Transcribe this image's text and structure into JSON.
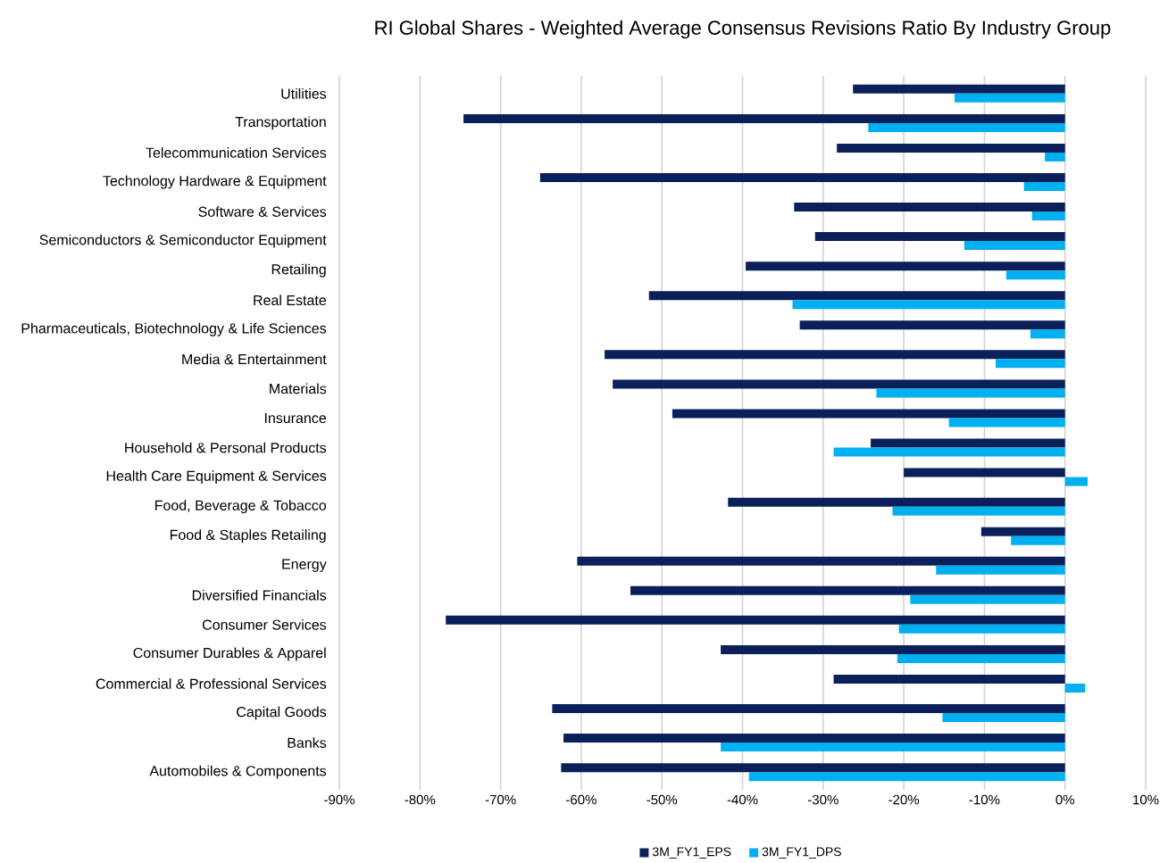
{
  "chart_data": {
    "type": "bar",
    "orientation": "horizontal",
    "title": "RI Global Shares - Weighted Average Consensus Revisions Ratio By Industry Group",
    "categories": [
      "Utilities",
      "Transportation",
      "Telecommunication Services",
      "Technology Hardware & Equipment",
      "Software & Services",
      "Semiconductors & Semiconductor Equipment",
      "Retailing",
      "Real Estate",
      "Pharmaceuticals, Biotechnology & Life Sciences",
      "Media & Entertainment",
      "Materials",
      "Insurance",
      "Household & Personal Products",
      "Health Care Equipment & Services",
      "Food, Beverage & Tobacco",
      "Food & Staples Retailing",
      "Energy",
      "Diversified Financials",
      "Consumer Services",
      "Consumer Durables & Apparel",
      "Commercial & Professional Services",
      "Capital Goods",
      "Banks",
      "Automobiles & Components"
    ],
    "series": [
      {
        "name": "3M_FY1_EPS",
        "color": "#0b1f5b",
        "values": [
          -26.3,
          -74.6,
          -28.3,
          -65.1,
          -33.6,
          -31.0,
          -39.6,
          -51.6,
          -32.9,
          -57.1,
          -56.1,
          -48.7,
          -24.1,
          -20.0,
          -41.8,
          -10.4,
          -60.5,
          -53.9,
          -76.8,
          -42.7,
          -28.7,
          -63.6,
          -62.2,
          -62.5
        ]
      },
      {
        "name": "3M_FY1_DPS",
        "color": "#00b0f0",
        "values": [
          -13.7,
          -24.4,
          -2.5,
          -5.1,
          -4.1,
          -12.5,
          -7.3,
          -33.8,
          -4.3,
          -8.6,
          -23.4,
          -14.4,
          -28.7,
          2.8,
          -21.4,
          -6.7,
          -16.0,
          -19.2,
          -20.6,
          -20.8,
          2.5,
          -15.2,
          -42.7,
          -39.2
        ]
      }
    ],
    "xlim": [
      -90,
      10
    ],
    "xticks": [
      {
        "value": -90,
        "label": "-90%"
      },
      {
        "value": -80,
        "label": "-80%"
      },
      {
        "value": -70,
        "label": "-70%"
      },
      {
        "value": -60,
        "label": "-60%"
      },
      {
        "value": -50,
        "label": "-50%"
      },
      {
        "value": -40,
        "label": "-40%"
      },
      {
        "value": -30,
        "label": "-30%"
      },
      {
        "value": -20,
        "label": "-20%"
      },
      {
        "value": -10,
        "label": "-10%"
      },
      {
        "value": 0,
        "label": "0%"
      },
      {
        "value": 10,
        "label": "10%"
      }
    ],
    "grid": "x",
    "legend": "bottom"
  }
}
